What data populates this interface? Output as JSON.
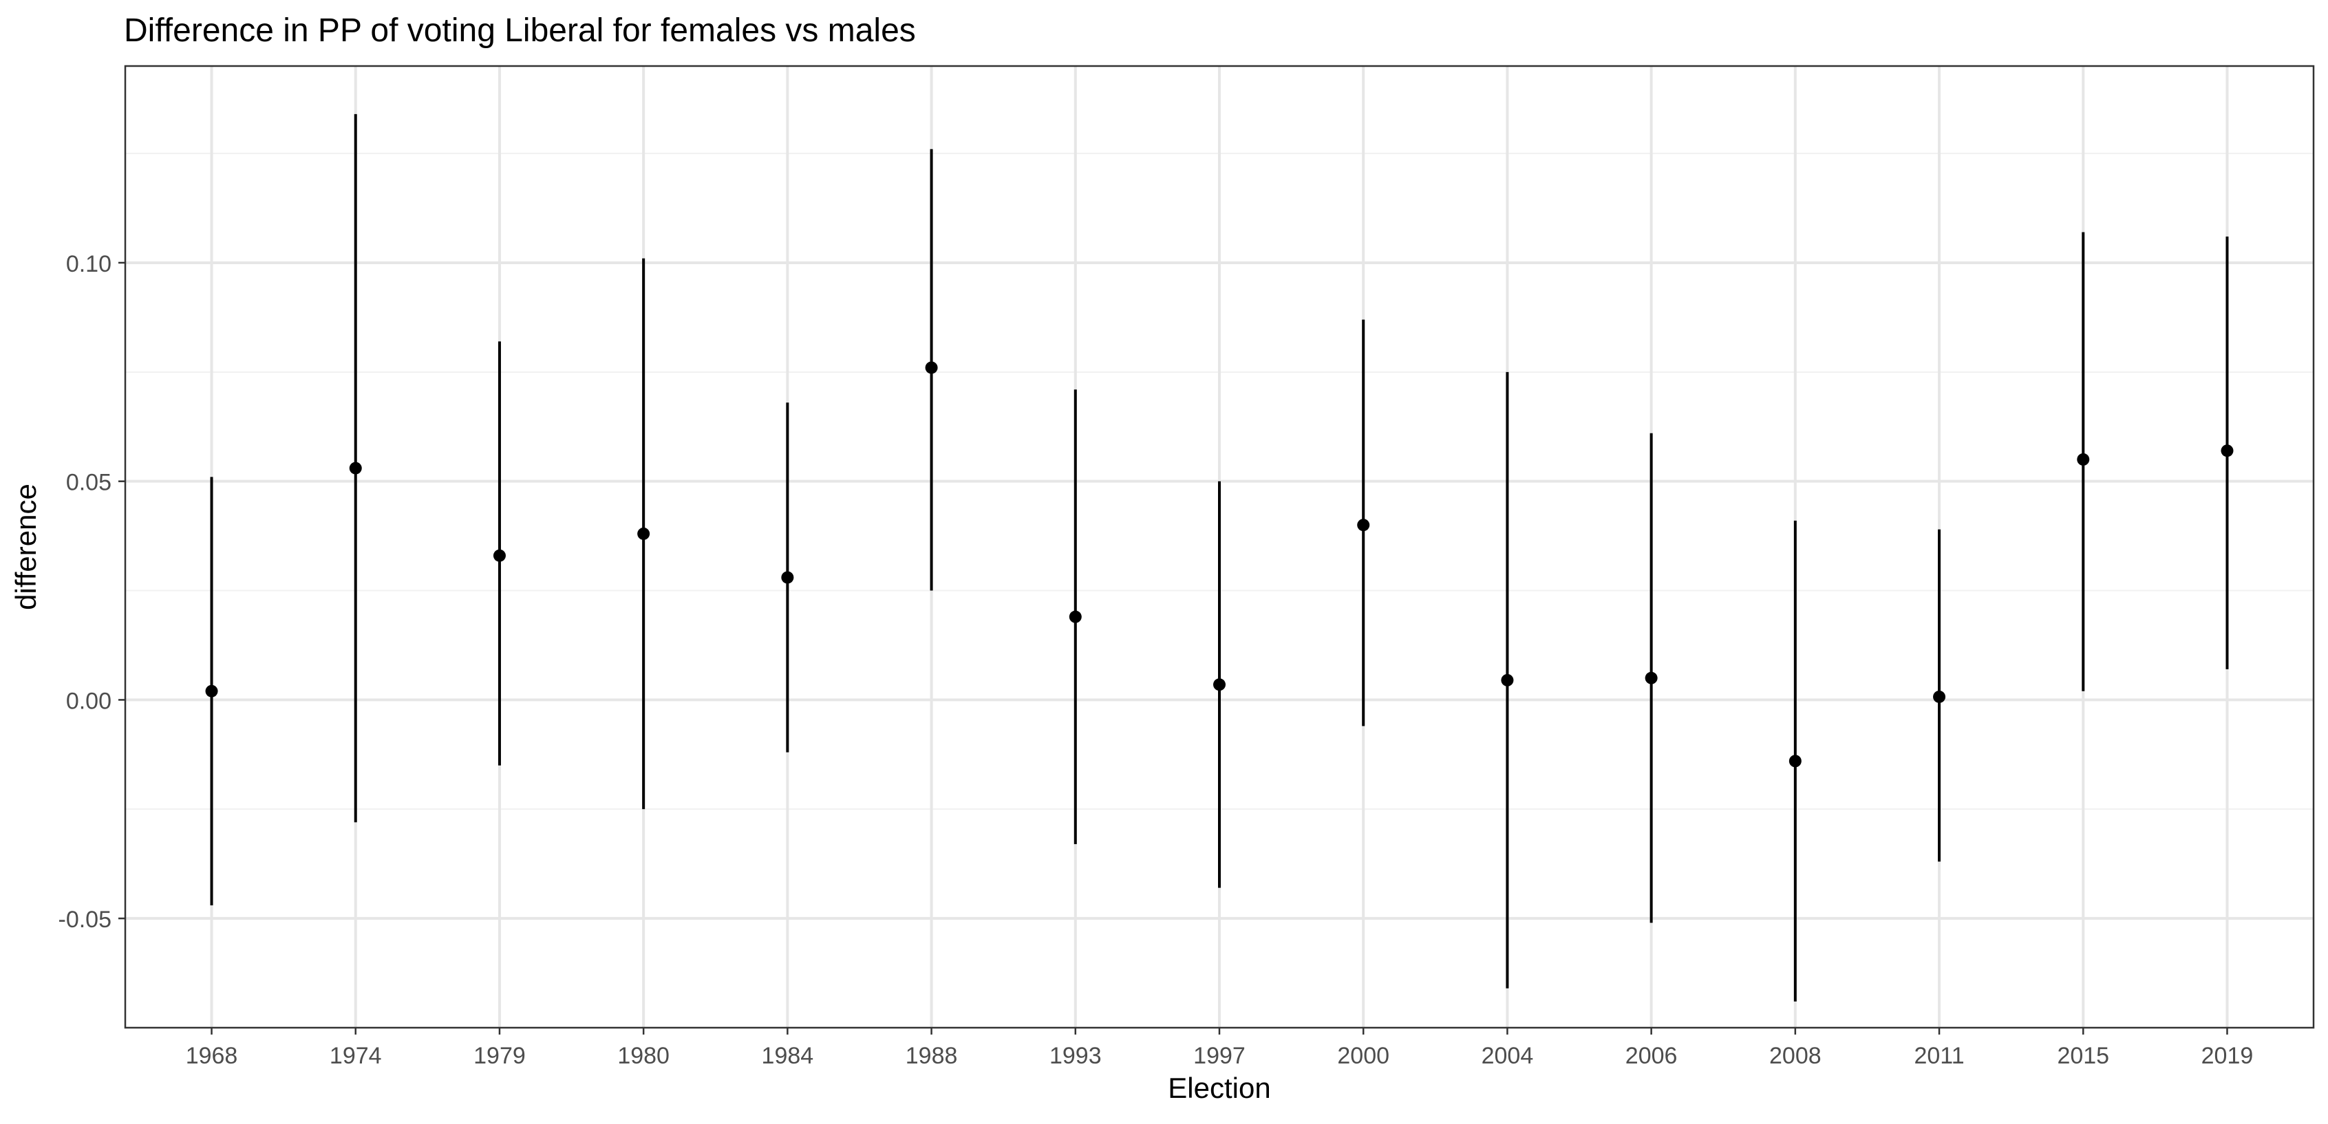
{
  "chart_data": {
    "type": "scatter",
    "title": "Difference in PP of voting Liberal for females vs males",
    "xlabel": "Election",
    "ylabel": "difference",
    "categories": [
      "1968",
      "1974",
      "1979",
      "1980",
      "1984",
      "1988",
      "1993",
      "1997",
      "2000",
      "2004",
      "2006",
      "2008",
      "2011",
      "2015",
      "2019"
    ],
    "points": [
      {
        "x": "1968",
        "y": 0.002,
        "ymin": -0.047,
        "ymax": 0.051
      },
      {
        "x": "1974",
        "y": 0.053,
        "ymin": -0.028,
        "ymax": 0.134
      },
      {
        "x": "1979",
        "y": 0.033,
        "ymin": -0.015,
        "ymax": 0.082
      },
      {
        "x": "1980",
        "y": 0.038,
        "ymin": -0.025,
        "ymax": 0.101
      },
      {
        "x": "1984",
        "y": 0.028,
        "ymin": -0.012,
        "ymax": 0.068
      },
      {
        "x": "1988",
        "y": 0.076,
        "ymin": 0.025,
        "ymax": 0.126
      },
      {
        "x": "1993",
        "y": 0.019,
        "ymin": -0.033,
        "ymax": 0.071
      },
      {
        "x": "1997",
        "y": 0.0035,
        "ymin": -0.043,
        "ymax": 0.05
      },
      {
        "x": "2000",
        "y": 0.04,
        "ymin": -0.006,
        "ymax": 0.087
      },
      {
        "x": "2004",
        "y": 0.0045,
        "ymin": -0.066,
        "ymax": 0.075
      },
      {
        "x": "2006",
        "y": 0.005,
        "ymin": -0.051,
        "ymax": 0.061
      },
      {
        "x": "2008",
        "y": -0.014,
        "ymin": -0.069,
        "ymax": 0.041
      },
      {
        "x": "2011",
        "y": 0.0007,
        "ymin": -0.037,
        "ymax": 0.039
      },
      {
        "x": "2015",
        "y": 0.055,
        "ymin": 0.002,
        "ymax": 0.107
      },
      {
        "x": "2019",
        "y": 0.057,
        "ymin": 0.007,
        "ymax": 0.106
      }
    ],
    "yticks": [
      -0.05,
      0.0,
      0.05,
      0.1
    ],
    "ytick_labels": [
      "-0.05",
      "0.00",
      "0.05",
      "0.10"
    ],
    "ylim": [
      -0.075,
      0.145
    ],
    "grid": true,
    "legend": "none"
  }
}
